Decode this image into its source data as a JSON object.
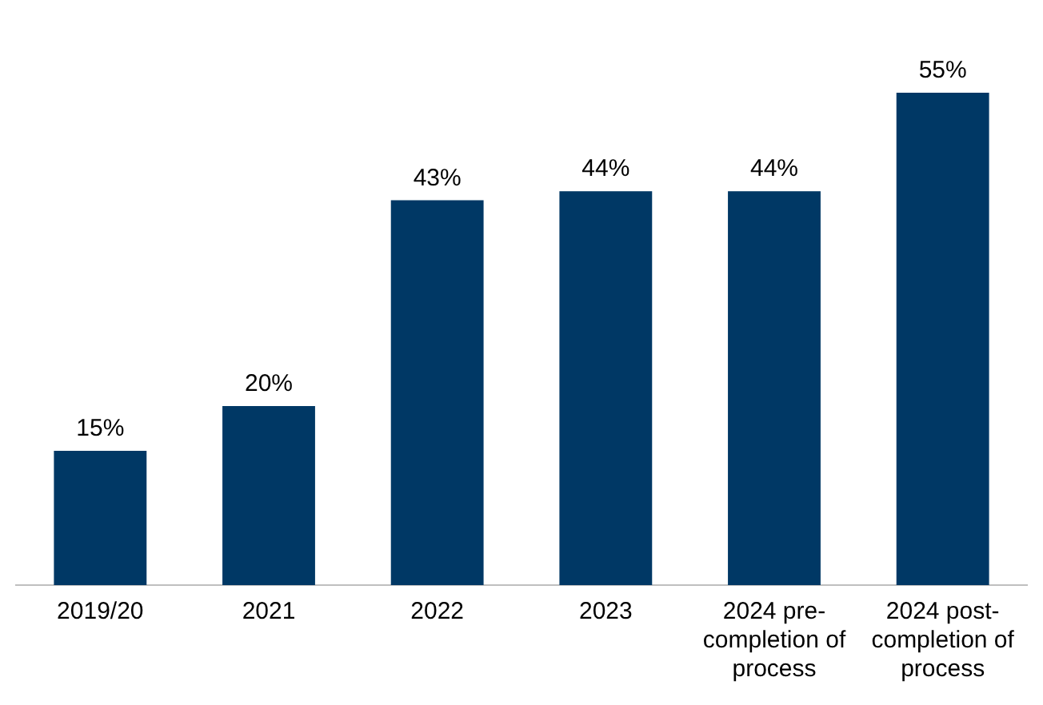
{
  "chart_data": {
    "type": "bar",
    "categories": [
      "2019/20",
      "2021",
      "2022",
      "2023",
      "2024 pre-completion of process",
      "2024 post-completion of process"
    ],
    "values": [
      15,
      20,
      43,
      44,
      44,
      55
    ],
    "value_labels": [
      "15%",
      "20%",
      "43%",
      "44%",
      "44%",
      "55%"
    ],
    "color": "#003865",
    "grid": false,
    "legend": false
  }
}
